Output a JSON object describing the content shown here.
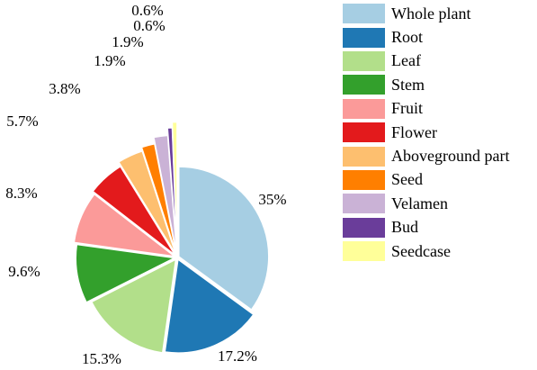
{
  "chart_data": {
    "type": "pie",
    "title": "",
    "legend_position": "right",
    "slices": [
      {
        "name": "Whole plant",
        "value": 35,
        "label": "35%",
        "color": "#a6cee3"
      },
      {
        "name": "Root",
        "value": 17.2,
        "label": "17.2%",
        "color": "#1f78b4"
      },
      {
        "name": "Leaf",
        "value": 15.3,
        "label": "15.3%",
        "color": "#b2df8a"
      },
      {
        "name": "Stem",
        "value": 9.6,
        "label": "9.6%",
        "color": "#33a02c"
      },
      {
        "name": "Fruit",
        "value": 8.3,
        "label": "8.3%",
        "color": "#fb9a99"
      },
      {
        "name": "Flower",
        "value": 5.7,
        "label": "5.7%",
        "color": "#e31a1c"
      },
      {
        "name": "Aboveground part",
        "value": 3.8,
        "label": "3.8%",
        "color": "#fdbf6f"
      },
      {
        "name": "Seed",
        "value": 1.9,
        "label": "1.9%",
        "color": "#ff7f00"
      },
      {
        "name": "Velamen",
        "value": 1.9,
        "label": "1.9%",
        "color": "#cab2d6"
      },
      {
        "name": "Bud",
        "value": 0.6,
        "label": "0.6%",
        "color": "#6a3d9a"
      },
      {
        "name": "Seedcase",
        "value": 0.6,
        "label": "0.6%",
        "color": "#ffff99"
      }
    ]
  }
}
